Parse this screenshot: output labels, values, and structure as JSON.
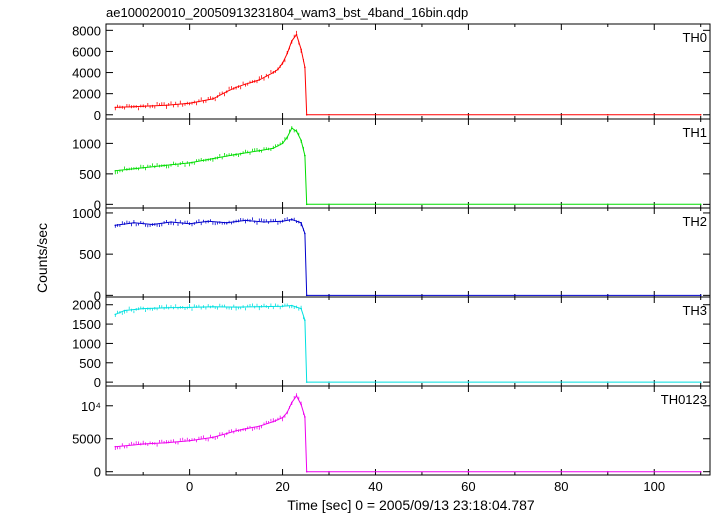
{
  "chart_data": {
    "type": "line",
    "title": "ae100020010_20050913231804_wam3_bst_4band_16bin.qdp",
    "xlabel": "Time [sec] 0 = 2005/09/13 23:18:04.787",
    "ylabel": "Counts/sec",
    "xlim": [
      -18,
      112
    ],
    "x_ticks": [
      0,
      20,
      40,
      60,
      80,
      100
    ],
    "x_tick_labels": [
      "0",
      "20",
      "40",
      "60",
      "80",
      "100"
    ],
    "panels": [
      {
        "name": "TH0",
        "color": "#ff0000",
        "ylim": [
          -400,
          8600
        ],
        "y_ticks": [
          0,
          2000,
          4000,
          6000,
          8000
        ],
        "y_tick_labels": [
          "0",
          "2000",
          "4000",
          "6000",
          "8000"
        ],
        "x": [
          -16,
          -10,
          -5,
          0,
          5,
          8,
          10,
          12,
          15,
          18,
          19,
          20,
          21,
          22,
          23,
          24,
          24.8,
          25.2,
          30,
          60,
          90,
          110
        ],
        "values": [
          700,
          800,
          900,
          1100,
          1500,
          2200,
          2600,
          2900,
          3300,
          4000,
          4300,
          4900,
          5800,
          7000,
          7600,
          6200,
          4500,
          0,
          0,
          0,
          0,
          0
        ]
      },
      {
        "name": "TH1",
        "color": "#00dd00",
        "ylim": [
          -60,
          1400
        ],
        "y_ticks": [
          0,
          500,
          1000
        ],
        "y_tick_labels": [
          "0",
          "500",
          "1000"
        ],
        "x": [
          -16,
          -10,
          -5,
          0,
          5,
          10,
          15,
          18,
          20,
          21,
          22,
          23,
          24,
          24.8,
          25.2,
          30,
          60,
          90,
          110
        ],
        "values": [
          550,
          600,
          640,
          680,
          750,
          820,
          880,
          920,
          1000,
          1100,
          1250,
          1200,
          1050,
          800,
          0,
          0,
          0,
          0,
          0
        ]
      },
      {
        "name": "TH2",
        "color": "#0000cc",
        "ylim": [
          -20,
          1060
        ],
        "y_ticks": [
          0,
          500,
          1000
        ],
        "y_tick_labels": [
          "0",
          "500",
          "1000"
        ],
        "x": [
          -16,
          -12,
          -8,
          -4,
          0,
          4,
          8,
          12,
          16,
          20,
          22,
          24,
          24.8,
          25.2,
          30,
          60,
          90,
          110
        ],
        "values": [
          850,
          880,
          860,
          890,
          870,
          900,
          880,
          910,
          890,
          900,
          920,
          880,
          750,
          0,
          0,
          0,
          0,
          0
        ]
      },
      {
        "name": "TH3",
        "color": "#00e0e0",
        "ylim": [
          -100,
          2200
        ],
        "y_ticks": [
          0,
          500,
          1000,
          1500,
          2000
        ],
        "y_tick_labels": [
          "0",
          "500",
          "1000",
          "1500",
          "2000"
        ],
        "x": [
          -16,
          -14,
          -10,
          -5,
          0,
          5,
          10,
          15,
          20,
          22,
          24,
          24.8,
          25.2,
          30,
          60,
          90,
          110
        ],
        "values": [
          1750,
          1850,
          1900,
          1920,
          1930,
          1950,
          1940,
          1950,
          1960,
          1980,
          1900,
          1600,
          0,
          0,
          0,
          0,
          0
        ]
      },
      {
        "name": "TH0123",
        "color": "#ee00ee",
        "ylim": [
          -500,
          13000
        ],
        "y_ticks": [
          0,
          5000,
          10000
        ],
        "y_tick_labels": [
          "0",
          "5000",
          "10⁴"
        ],
        "x": [
          -16,
          -10,
          -5,
          0,
          5,
          8,
          10,
          12,
          15,
          18,
          20,
          21,
          22,
          23,
          24,
          24.8,
          25.2,
          30,
          60,
          90,
          110
        ],
        "values": [
          3800,
          4200,
          4400,
          4700,
          5200,
          5800,
          6200,
          6500,
          6900,
          7600,
          8200,
          9000,
          10500,
          11500,
          10200,
          8300,
          0,
          0,
          0,
          0,
          0
        ]
      }
    ]
  }
}
